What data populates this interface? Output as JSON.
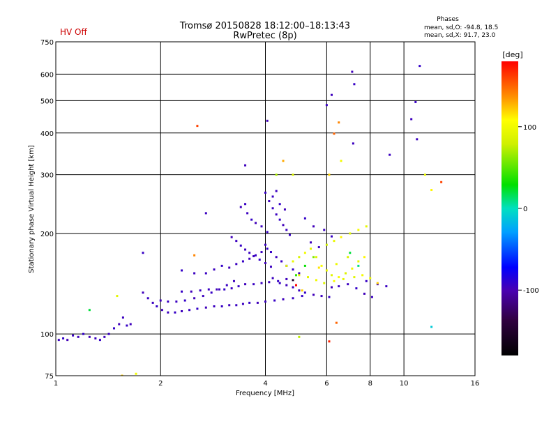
{
  "header": {
    "status": "HV Off",
    "title_line1": "Tromsø 20150828 18:12:00–18:13:43",
    "title_line2": "RwPretec (8p)",
    "stats_title": "Phases",
    "stats_o": "mean, sd,O: -94.8, 18.5",
    "stats_x": "mean, sd,X:  91.7, 23.0"
  },
  "colorbar": {
    "unit": "[deg]",
    "range": [
      -180,
      180
    ],
    "ticks": [
      {
        "value": 100,
        "label": "100"
      },
      {
        "value": 0,
        "label": "0"
      },
      {
        "value": -100,
        "label": "-100"
      }
    ]
  },
  "chart_data": {
    "type": "scatter",
    "title": "Tromsø 20150828 18:12:00–18:13:43",
    "subtitle": "RwPretec (8p)",
    "xlabel": "Frequency [MHz]",
    "ylabel": "Stationary phase Virtual Height [km]",
    "x_scale": "log",
    "y_scale": "log",
    "xlim": [
      1,
      16
    ],
    "ylim": [
      75,
      750
    ],
    "x_ticks": [
      {
        "value": 1,
        "label": "1"
      },
      {
        "value": 2,
        "label": "2"
      },
      {
        "value": 4,
        "label": "4"
      },
      {
        "value": 6,
        "label": "6"
      },
      {
        "value": 8,
        "label": "8"
      },
      {
        "value": 10,
        "label": "10"
      },
      {
        "value": 16,
        "label": "16"
      }
    ],
    "y_ticks": [
      {
        "value": 75,
        "label": "75"
      },
      {
        "value": 100,
        "label": "100"
      },
      {
        "value": 200,
        "label": "200"
      },
      {
        "value": 300,
        "label": "300"
      },
      {
        "value": 400,
        "label": "400"
      },
      {
        "value": 500,
        "label": "500"
      },
      {
        "value": 600,
        "label": "600"
      },
      {
        "value": 750,
        "label": "750"
      }
    ],
    "grid": true,
    "series": [
      {
        "name": "O",
        "points": [
          [
            1.02,
            96,
            -95
          ],
          [
            1.05,
            97,
            -92
          ],
          [
            1.08,
            96,
            -98
          ],
          [
            1.12,
            99,
            -94
          ],
          [
            1.16,
            98,
            -96
          ],
          [
            1.2,
            100,
            -92
          ],
          [
            1.25,
            98,
            -97
          ],
          [
            1.3,
            97,
            -95
          ],
          [
            1.34,
            96,
            -93
          ],
          [
            1.38,
            98,
            -96
          ],
          [
            1.42,
            100,
            -94
          ],
          [
            1.47,
            104,
            -92
          ],
          [
            1.52,
            107,
            -97
          ],
          [
            1.56,
            112,
            -95
          ],
          [
            1.6,
            106,
            -93
          ],
          [
            1.64,
            107,
            -96
          ],
          [
            1.78,
            133,
            -96
          ],
          [
            1.84,
            128,
            -94
          ],
          [
            1.9,
            124,
            -95
          ],
          [
            1.95,
            121,
            -92
          ],
          [
            2.02,
            118,
            -97
          ],
          [
            2.1,
            116,
            -95
          ],
          [
            2.2,
            116,
            -93
          ],
          [
            2.3,
            117,
            -96
          ],
          [
            2.42,
            118,
            -94
          ],
          [
            2.55,
            119,
            -92
          ],
          [
            2.7,
            120,
            -97
          ],
          [
            2.85,
            121,
            -95
          ],
          [
            3.0,
            121,
            -93
          ],
          [
            3.15,
            122,
            -96
          ],
          [
            3.3,
            122,
            -94
          ],
          [
            3.45,
            123,
            -95
          ],
          [
            3.6,
            124,
            -92
          ],
          [
            3.8,
            124,
            -97
          ],
          [
            4.0,
            125,
            -95
          ],
          [
            4.25,
            126,
            -93
          ],
          [
            4.5,
            127,
            -96
          ],
          [
            4.8,
            128,
            -94
          ],
          [
            5.1,
            130,
            -92
          ],
          [
            2.0,
            126,
            -96
          ],
          [
            2.1,
            125,
            -94
          ],
          [
            2.22,
            125,
            -95
          ],
          [
            2.35,
            126,
            -92
          ],
          [
            2.5,
            128,
            -97
          ],
          [
            2.65,
            130,
            -95
          ],
          [
            2.8,
            133,
            -93
          ],
          [
            2.95,
            136,
            -96
          ],
          [
            3.1,
            140,
            -94
          ],
          [
            3.25,
            144,
            -95
          ],
          [
            2.3,
            134,
            -93
          ],
          [
            2.45,
            134,
            -97
          ],
          [
            2.6,
            135,
            -95
          ],
          [
            2.75,
            136,
            -94
          ],
          [
            2.9,
            136,
            -96
          ],
          [
            3.05,
            136,
            -92
          ],
          [
            3.2,
            137,
            -95
          ],
          [
            3.35,
            139,
            -93
          ],
          [
            3.5,
            141,
            -96
          ],
          [
            3.7,
            141,
            -94
          ],
          [
            3.9,
            142,
            -95
          ],
          [
            4.1,
            143,
            -97
          ],
          [
            4.35,
            144,
            -93
          ],
          [
            4.6,
            146,
            -96
          ],
          [
            2.7,
            152,
            -94
          ],
          [
            2.85,
            156,
            -95
          ],
          [
            3.0,
            160,
            -92
          ],
          [
            3.15,
            158,
            -97
          ],
          [
            3.3,
            162,
            -95
          ],
          [
            3.45,
            165,
            -93
          ],
          [
            3.6,
            168,
            -96
          ],
          [
            3.75,
            172,
            -94
          ],
          [
            3.9,
            176,
            -95
          ],
          [
            4.05,
            180,
            -92
          ],
          [
            3.2,
            195,
            -97
          ],
          [
            3.3,
            190,
            -95
          ],
          [
            3.4,
            184,
            -93
          ],
          [
            3.5,
            179,
            -96
          ],
          [
            3.6,
            175,
            -94
          ],
          [
            3.7,
            171,
            -95
          ],
          [
            3.85,
            167,
            -92
          ],
          [
            4.0,
            163,
            -97
          ],
          [
            4.15,
            159,
            -95
          ],
          [
            4.0,
            265,
            -93
          ],
          [
            4.1,
            250,
            -96
          ],
          [
            4.2,
            238,
            -94
          ],
          [
            4.3,
            228,
            -95
          ],
          [
            4.4,
            220,
            -92
          ],
          [
            4.5,
            212,
            -97
          ],
          [
            4.6,
            205,
            -95
          ],
          [
            4.7,
            198,
            -93
          ],
          [
            3.4,
            240,
            -96
          ],
          [
            3.5,
            245,
            -94
          ],
          [
            3.55,
            230,
            -95
          ],
          [
            3.65,
            220,
            -92
          ],
          [
            3.75,
            215,
            -97
          ],
          [
            3.9,
            210,
            -95
          ],
          [
            4.05,
            202,
            -93
          ],
          [
            3.5,
            320,
            -96
          ],
          [
            4.2,
            258,
            -94
          ],
          [
            4.3,
            268,
            -95
          ],
          [
            4.4,
            245,
            -92
          ],
          [
            4.55,
            236,
            -97
          ],
          [
            4.0,
            185,
            -95
          ],
          [
            4.15,
            176,
            -93
          ],
          [
            4.3,
            170,
            -96
          ],
          [
            4.45,
            165,
            -94
          ],
          [
            4.6,
            160,
            -95
          ],
          [
            4.8,
            156,
            -92
          ],
          [
            5.0,
            152,
            -97
          ],
          [
            4.2,
            147,
            -95
          ],
          [
            4.4,
            142,
            -93
          ],
          [
            4.6,
            140,
            -96
          ],
          [
            4.8,
            138,
            -94
          ],
          [
            5.0,
            135,
            -95
          ],
          [
            5.2,
            133,
            -92
          ],
          [
            5.5,
            131,
            -97
          ],
          [
            5.8,
            130,
            -95
          ],
          [
            6.1,
            129,
            -93
          ],
          [
            6.2,
            138,
            -96
          ],
          [
            6.5,
            139,
            -94
          ],
          [
            6.9,
            141,
            -95
          ],
          [
            7.3,
            137,
            -92
          ],
          [
            7.7,
            132,
            -97
          ],
          [
            8.1,
            129,
            -95
          ],
          [
            7.8,
            144,
            -93
          ],
          [
            8.4,
            141,
            -96
          ],
          [
            8.9,
            139,
            -94
          ],
          [
            2.7,
            230,
            -95
          ],
          [
            2.3,
            155,
            -92
          ],
          [
            4.05,
            435,
            -97
          ],
          [
            2.5,
            152,
            -95
          ],
          [
            1.78,
            175,
            -93
          ],
          [
            10.5,
            440,
            -96
          ],
          [
            10.8,
            495,
            -94
          ],
          [
            10.9,
            383,
            -95
          ],
          [
            11.1,
            635,
            -92
          ],
          [
            7.1,
            610,
            -97
          ],
          [
            7.15,
            372,
            -95
          ],
          [
            7.2,
            560,
            -93
          ],
          [
            6.2,
            520,
            -96
          ],
          [
            6.0,
            485,
            -94
          ],
          [
            9.1,
            344,
            -95
          ],
          [
            5.2,
            222,
            -92
          ],
          [
            5.5,
            210,
            -97
          ],
          [
            5.9,
            205,
            -95
          ],
          [
            6.2,
            196,
            -93
          ],
          [
            5.4,
            188,
            -96
          ],
          [
            5.7,
            182,
            -94
          ]
        ]
      },
      {
        "name": "X",
        "points": [
          [
            4.6,
            160,
            90
          ],
          [
            4.8,
            165,
            95
          ],
          [
            5.0,
            170,
            85
          ],
          [
            5.2,
            175,
            100
          ],
          [
            5.4,
            180,
            92
          ],
          [
            5.6,
            170,
            88
          ],
          [
            5.8,
            160,
            105
          ],
          [
            6.0,
            155,
            95
          ],
          [
            6.2,
            150,
            90
          ],
          [
            6.5,
            148,
            102
          ],
          [
            6.8,
            152,
            87
          ],
          [
            7.1,
            157,
            98
          ],
          [
            7.4,
            165,
            93
          ],
          [
            7.7,
            170,
            110
          ],
          [
            5.0,
            150,
            96
          ],
          [
            5.3,
            148,
            91
          ],
          [
            5.6,
            145,
            99
          ],
          [
            5.9,
            142,
            86
          ],
          [
            6.3,
            144,
            104
          ],
          [
            6.7,
            146,
            93
          ],
          [
            7.2,
            148,
            89
          ],
          [
            7.6,
            150,
            101
          ],
          [
            8.0,
            147,
            95
          ],
          [
            8.4,
            142,
            120
          ],
          [
            6.0,
            185,
            80
          ],
          [
            6.3,
            190,
            95
          ],
          [
            6.6,
            195,
            110
          ],
          [
            7.0,
            200,
            88
          ],
          [
            7.4,
            205,
            102
          ],
          [
            7.8,
            210,
            92
          ],
          [
            4.5,
            330,
            130
          ],
          [
            4.3,
            300,
            70
          ],
          [
            4.8,
            300,
            85
          ],
          [
            6.5,
            430,
            140
          ],
          [
            6.3,
            398,
            150
          ],
          [
            6.6,
            330,
            100
          ],
          [
            6.1,
            300,
            120
          ],
          [
            12.0,
            105,
            -10
          ],
          [
            12.0,
            270,
            110
          ],
          [
            12.8,
            285,
            160
          ],
          [
            11.5,
            300,
            95
          ],
          [
            2.55,
            420,
            160
          ],
          [
            2.5,
            172,
            140
          ],
          [
            1.5,
            130,
            90
          ],
          [
            1.25,
            118,
            20
          ],
          [
            1.55,
            75,
            120
          ],
          [
            1.7,
            76,
            100
          ],
          [
            5.5,
            170,
            60
          ],
          [
            5.2,
            160,
            30
          ],
          [
            4.9,
            150,
            40
          ],
          [
            5.7,
            158,
            115
          ],
          [
            6.4,
            162,
            97
          ],
          [
            6.9,
            170,
            84
          ],
          [
            5.1,
            135,
            120
          ],
          [
            6.1,
            95,
            170
          ],
          [
            6.4,
            108,
            150
          ],
          [
            5.0,
            98,
            75
          ],
          [
            7.4,
            160,
            10
          ],
          [
            7.0,
            175,
            20
          ],
          [
            4.9,
            140,
            180
          ],
          [
            4.8,
            145,
            -150
          ]
        ]
      }
    ]
  }
}
